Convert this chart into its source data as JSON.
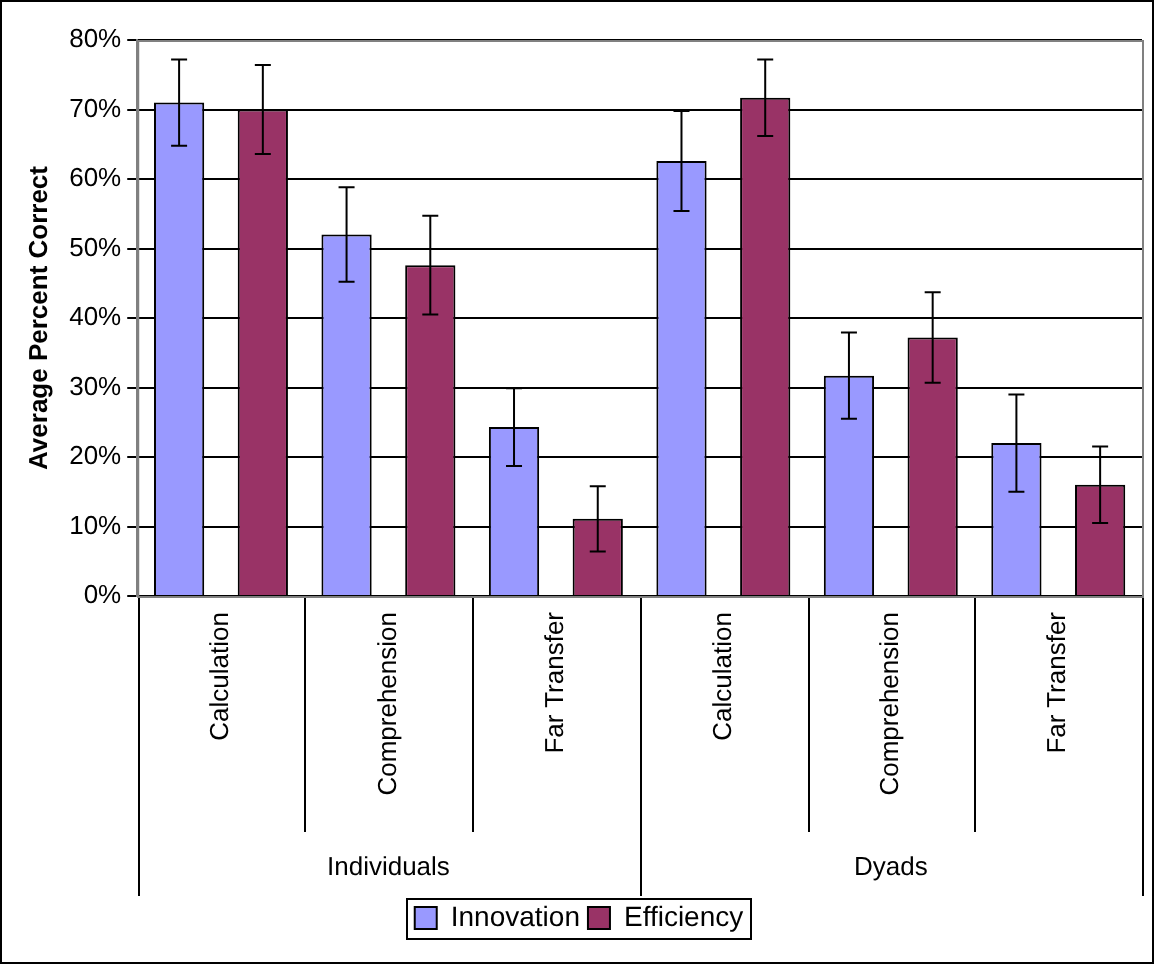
{
  "chart_data": {
    "type": "bar",
    "ylabel": "Average Percent Correct",
    "categories": [
      "Calculation",
      "Comprehension",
      "Far Transfer",
      "Calculation",
      "Comprehension",
      "Far Transfer"
    ],
    "annotations": [
      "Individuals",
      "Dyads"
    ],
    "series": [
      {
        "name": "Innovation",
        "color": "#9999ff",
        "values": [
          71,
          52,
          24.3,
          62.6,
          31.7,
          22
        ],
        "errors": [
          6.2,
          6.8,
          5.6,
          7.2,
          6.2,
          7
        ]
      },
      {
        "name": "Efficiency",
        "color": "#993366",
        "values": [
          70,
          47.6,
          11.1,
          71.7,
          37.2,
          16
        ],
        "errors": [
          6.4,
          7.1,
          4.7,
          5.5,
          6.5,
          5.5
        ]
      }
    ],
    "ylim": [
      0,
      80
    ],
    "yticks": [
      {
        "value": 0,
        "label": "0%"
      },
      {
        "value": 10,
        "label": "10%"
      },
      {
        "value": 20,
        "label": "20%"
      },
      {
        "value": 30,
        "label": "30%"
      },
      {
        "value": 40,
        "label": "40%"
      },
      {
        "value": 50,
        "label": "50%"
      },
      {
        "value": 60,
        "label": "60%"
      },
      {
        "value": 70,
        "label": "70%"
      },
      {
        "value": 80,
        "label": "80%"
      }
    ],
    "grid": "y",
    "legend": "bottom"
  }
}
